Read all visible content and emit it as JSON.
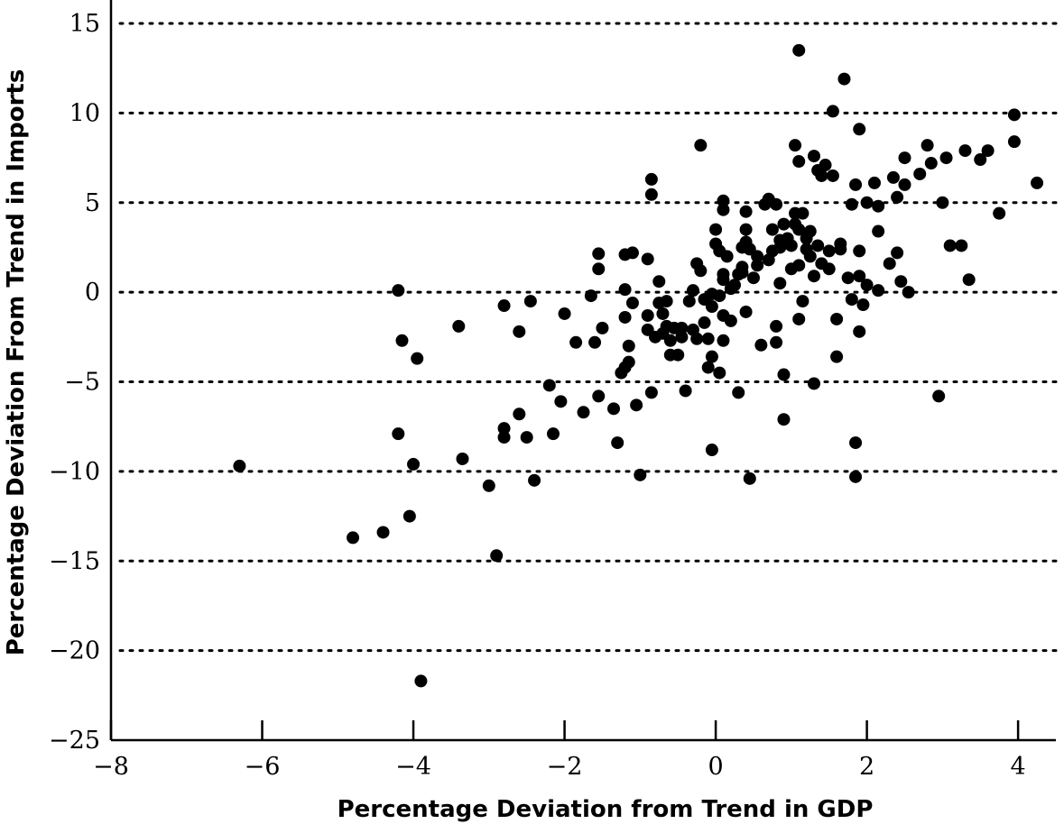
{
  "chart_data": {
    "type": "scatter",
    "title": "",
    "xlabel": "Percentage Deviation from Trend in GDP",
    "ylabel": "Percentage Deviation From Trend in Imports",
    "xlim": [
      -8,
      4.5
    ],
    "ylim": [
      -25,
      16
    ],
    "xticks": [
      -8,
      -6,
      -4,
      -2,
      0,
      2,
      4
    ],
    "xtick_labels": [
      "−8",
      "−6",
      "−4",
      "−2",
      "0",
      "2",
      "4"
    ],
    "yticks": [
      15,
      10,
      5,
      0,
      -5,
      -10,
      -15,
      -20,
      -25
    ],
    "ytick_labels": [
      "15",
      "10",
      "5",
      "0",
      "−5",
      "−10",
      "−15",
      "−20",
      "−25"
    ],
    "grid": "horizontal dotted",
    "legend": "none",
    "point_color": "#000000",
    "points": [
      [
        -6.3,
        -9.7
      ],
      [
        -4.8,
        -13.7
      ],
      [
        -4.4,
        -13.4
      ],
      [
        -4.2,
        0.1
      ],
      [
        -4.2,
        -7.9
      ],
      [
        -4.15,
        -2.7
      ],
      [
        -4.05,
        -12.5
      ],
      [
        -4.0,
        -9.6
      ],
      [
        -3.95,
        -3.7
      ],
      [
        -3.9,
        -21.7
      ],
      [
        -3.4,
        -1.9
      ],
      [
        -3.35,
        -9.3
      ],
      [
        -3.0,
        -10.8
      ],
      [
        -2.9,
        -14.7
      ],
      [
        -2.8,
        -0.75
      ],
      [
        -2.8,
        -7.6
      ],
      [
        -2.8,
        -8.1
      ],
      [
        -2.6,
        -2.2
      ],
      [
        -2.6,
        -6.8
      ],
      [
        -2.5,
        -8.1
      ],
      [
        -2.45,
        -0.5
      ],
      [
        -2.4,
        -10.5
      ],
      [
        -2.2,
        -5.2
      ],
      [
        -2.15,
        -7.9
      ],
      [
        -2.05,
        -6.1
      ],
      [
        -2.0,
        -1.2
      ],
      [
        -1.85,
        -2.8
      ],
      [
        -1.75,
        -6.7
      ],
      [
        -1.65,
        -0.2
      ],
      [
        -1.6,
        -2.8
      ],
      [
        -1.55,
        -5.8
      ],
      [
        -1.55,
        1.3
      ],
      [
        -1.55,
        2.15
      ],
      [
        -1.5,
        -2.0
      ],
      [
        -1.35,
        -6.5
      ],
      [
        -1.3,
        -8.4
      ],
      [
        -1.25,
        -4.5
      ],
      [
        -1.2,
        -4.2
      ],
      [
        -1.2,
        2.1
      ],
      [
        -1.2,
        0.15
      ],
      [
        -1.2,
        -1.4
      ],
      [
        -1.15,
        -3.0
      ],
      [
        -1.15,
        -3.9
      ],
      [
        -1.1,
        -0.6
      ],
      [
        -1.1,
        2.2
      ],
      [
        -1.05,
        -6.3
      ],
      [
        -1.0,
        -10.2
      ],
      [
        -0.9,
        1.85
      ],
      [
        -0.9,
        -2.1
      ],
      [
        -0.9,
        -1.3
      ],
      [
        -0.85,
        6.3
      ],
      [
        -0.85,
        5.45
      ],
      [
        -0.85,
        -5.6
      ],
      [
        -0.8,
        -2.5
      ],
      [
        -0.75,
        -0.6
      ],
      [
        -0.75,
        0.6
      ],
      [
        -0.7,
        -2.3
      ],
      [
        -0.7,
        -1.2
      ],
      [
        -0.65,
        -0.5
      ],
      [
        -0.65,
        -1.9
      ],
      [
        -0.6,
        -3.5
      ],
      [
        -0.6,
        -2.7
      ],
      [
        -0.55,
        -2.0
      ],
      [
        -0.5,
        -3.5
      ],
      [
        -0.45,
        -2.5
      ],
      [
        -0.45,
        -2.0
      ],
      [
        -0.4,
        -5.5
      ],
      [
        -0.35,
        -0.5
      ],
      [
        -0.3,
        0.1
      ],
      [
        -0.3,
        -2.1
      ],
      [
        -0.25,
        -2.6
      ],
      [
        -0.25,
        1.6
      ],
      [
        -0.2,
        8.2
      ],
      [
        -0.2,
        1.2
      ],
      [
        -0.15,
        -0.4
      ],
      [
        -0.15,
        -1.7
      ],
      [
        -0.1,
        -2.6
      ],
      [
        -0.1,
        -4.2
      ],
      [
        -0.05,
        -0.1
      ],
      [
        -0.05,
        -3.6
      ],
      [
        -0.05,
        -0.8
      ],
      [
        -0.05,
        -8.8
      ],
      [
        0.0,
        2.7
      ],
      [
        0.0,
        3.5
      ],
      [
        0.05,
        -0.2
      ],
      [
        0.05,
        2.3
      ],
      [
        0.05,
        -4.5
      ],
      [
        0.1,
        1.0
      ],
      [
        0.1,
        0.7
      ],
      [
        0.1,
        -1.3
      ],
      [
        0.1,
        -2.7
      ],
      [
        0.1,
        4.6
      ],
      [
        0.1,
        5.1
      ],
      [
        0.15,
        2.0
      ],
      [
        0.2,
        -1.6
      ],
      [
        0.2,
        0.2
      ],
      [
        0.25,
        0.4
      ],
      [
        0.3,
        1.0
      ],
      [
        0.3,
        -5.6
      ],
      [
        0.35,
        1.4
      ],
      [
        0.35,
        1.1
      ],
      [
        0.35,
        2.5
      ],
      [
        0.4,
        2.8
      ],
      [
        0.4,
        4.5
      ],
      [
        0.4,
        3.5
      ],
      [
        0.4,
        -1.1
      ],
      [
        0.45,
        2.4
      ],
      [
        0.45,
        -10.4
      ],
      [
        0.5,
        0.8
      ],
      [
        0.55,
        2.0
      ],
      [
        0.55,
        1.5
      ],
      [
        0.6,
        -2.95
      ],
      [
        0.65,
        4.9
      ],
      [
        0.7,
        5.2
      ],
      [
        0.7,
        1.8
      ],
      [
        0.75,
        2.3
      ],
      [
        0.75,
        3.5
      ],
      [
        0.8,
        -1.9
      ],
      [
        0.8,
        -2.8
      ],
      [
        0.8,
        4.9
      ],
      [
        0.85,
        2.9
      ],
      [
        0.85,
        2.5
      ],
      [
        0.85,
        0.5
      ],
      [
        0.9,
        -4.6
      ],
      [
        0.9,
        3.8
      ],
      [
        0.9,
        -7.1
      ],
      [
        0.95,
        3.0
      ],
      [
        1.0,
        1.3
      ],
      [
        1.0,
        2.6
      ],
      [
        1.05,
        4.4
      ],
      [
        1.05,
        3.8
      ],
      [
        1.05,
        8.2
      ],
      [
        1.1,
        13.5
      ],
      [
        1.1,
        7.3
      ],
      [
        1.1,
        3.5
      ],
      [
        1.1,
        1.5
      ],
      [
        1.1,
        -1.5
      ],
      [
        1.15,
        -0.5
      ],
      [
        1.15,
        4.4
      ],
      [
        1.2,
        3.0
      ],
      [
        1.2,
        2.4
      ],
      [
        1.25,
        2.0
      ],
      [
        1.25,
        3.4
      ],
      [
        1.3,
        7.6
      ],
      [
        1.3,
        0.9
      ],
      [
        1.3,
        -5.1
      ],
      [
        1.35,
        6.8
      ],
      [
        1.35,
        2.6
      ],
      [
        1.4,
        6.5
      ],
      [
        1.4,
        1.6
      ],
      [
        1.45,
        7.1
      ],
      [
        1.5,
        1.3
      ],
      [
        1.5,
        2.3
      ],
      [
        1.55,
        10.1
      ],
      [
        1.55,
        6.5
      ],
      [
        1.6,
        -1.5
      ],
      [
        1.6,
        -3.6
      ],
      [
        1.65,
        2.7
      ],
      [
        1.65,
        2.4
      ],
      [
        1.7,
        11.9
      ],
      [
        1.75,
        0.8
      ],
      [
        1.8,
        -0.4
      ],
      [
        1.8,
        4.9
      ],
      [
        1.85,
        -8.4
      ],
      [
        1.85,
        -10.3
      ],
      [
        1.85,
        6.0
      ],
      [
        1.9,
        9.1
      ],
      [
        1.9,
        2.3
      ],
      [
        1.9,
        0.9
      ],
      [
        1.9,
        -2.2
      ],
      [
        1.95,
        -0.7
      ],
      [
        2.0,
        5.0
      ],
      [
        2.0,
        0.4
      ],
      [
        2.1,
        6.1
      ],
      [
        2.15,
        4.8
      ],
      [
        2.15,
        3.4
      ],
      [
        2.15,
        0.1
      ],
      [
        2.3,
        1.6
      ],
      [
        2.35,
        6.4
      ],
      [
        2.4,
        5.3
      ],
      [
        2.4,
        2.2
      ],
      [
        2.45,
        0.6
      ],
      [
        2.5,
        7.5
      ],
      [
        2.5,
        6.0
      ],
      [
        2.55,
        0.0
      ],
      [
        2.7,
        6.6
      ],
      [
        2.8,
        8.2
      ],
      [
        2.85,
        7.2
      ],
      [
        2.95,
        -5.8
      ],
      [
        3.0,
        5.0
      ],
      [
        3.05,
        7.5
      ],
      [
        3.1,
        2.6
      ],
      [
        3.25,
        2.6
      ],
      [
        3.3,
        7.9
      ],
      [
        3.35,
        0.7
      ],
      [
        3.5,
        7.4
      ],
      [
        3.6,
        7.9
      ],
      [
        3.75,
        4.4
      ],
      [
        3.95,
        8.4
      ],
      [
        3.95,
        9.9
      ],
      [
        4.25,
        6.1
      ]
    ]
  }
}
